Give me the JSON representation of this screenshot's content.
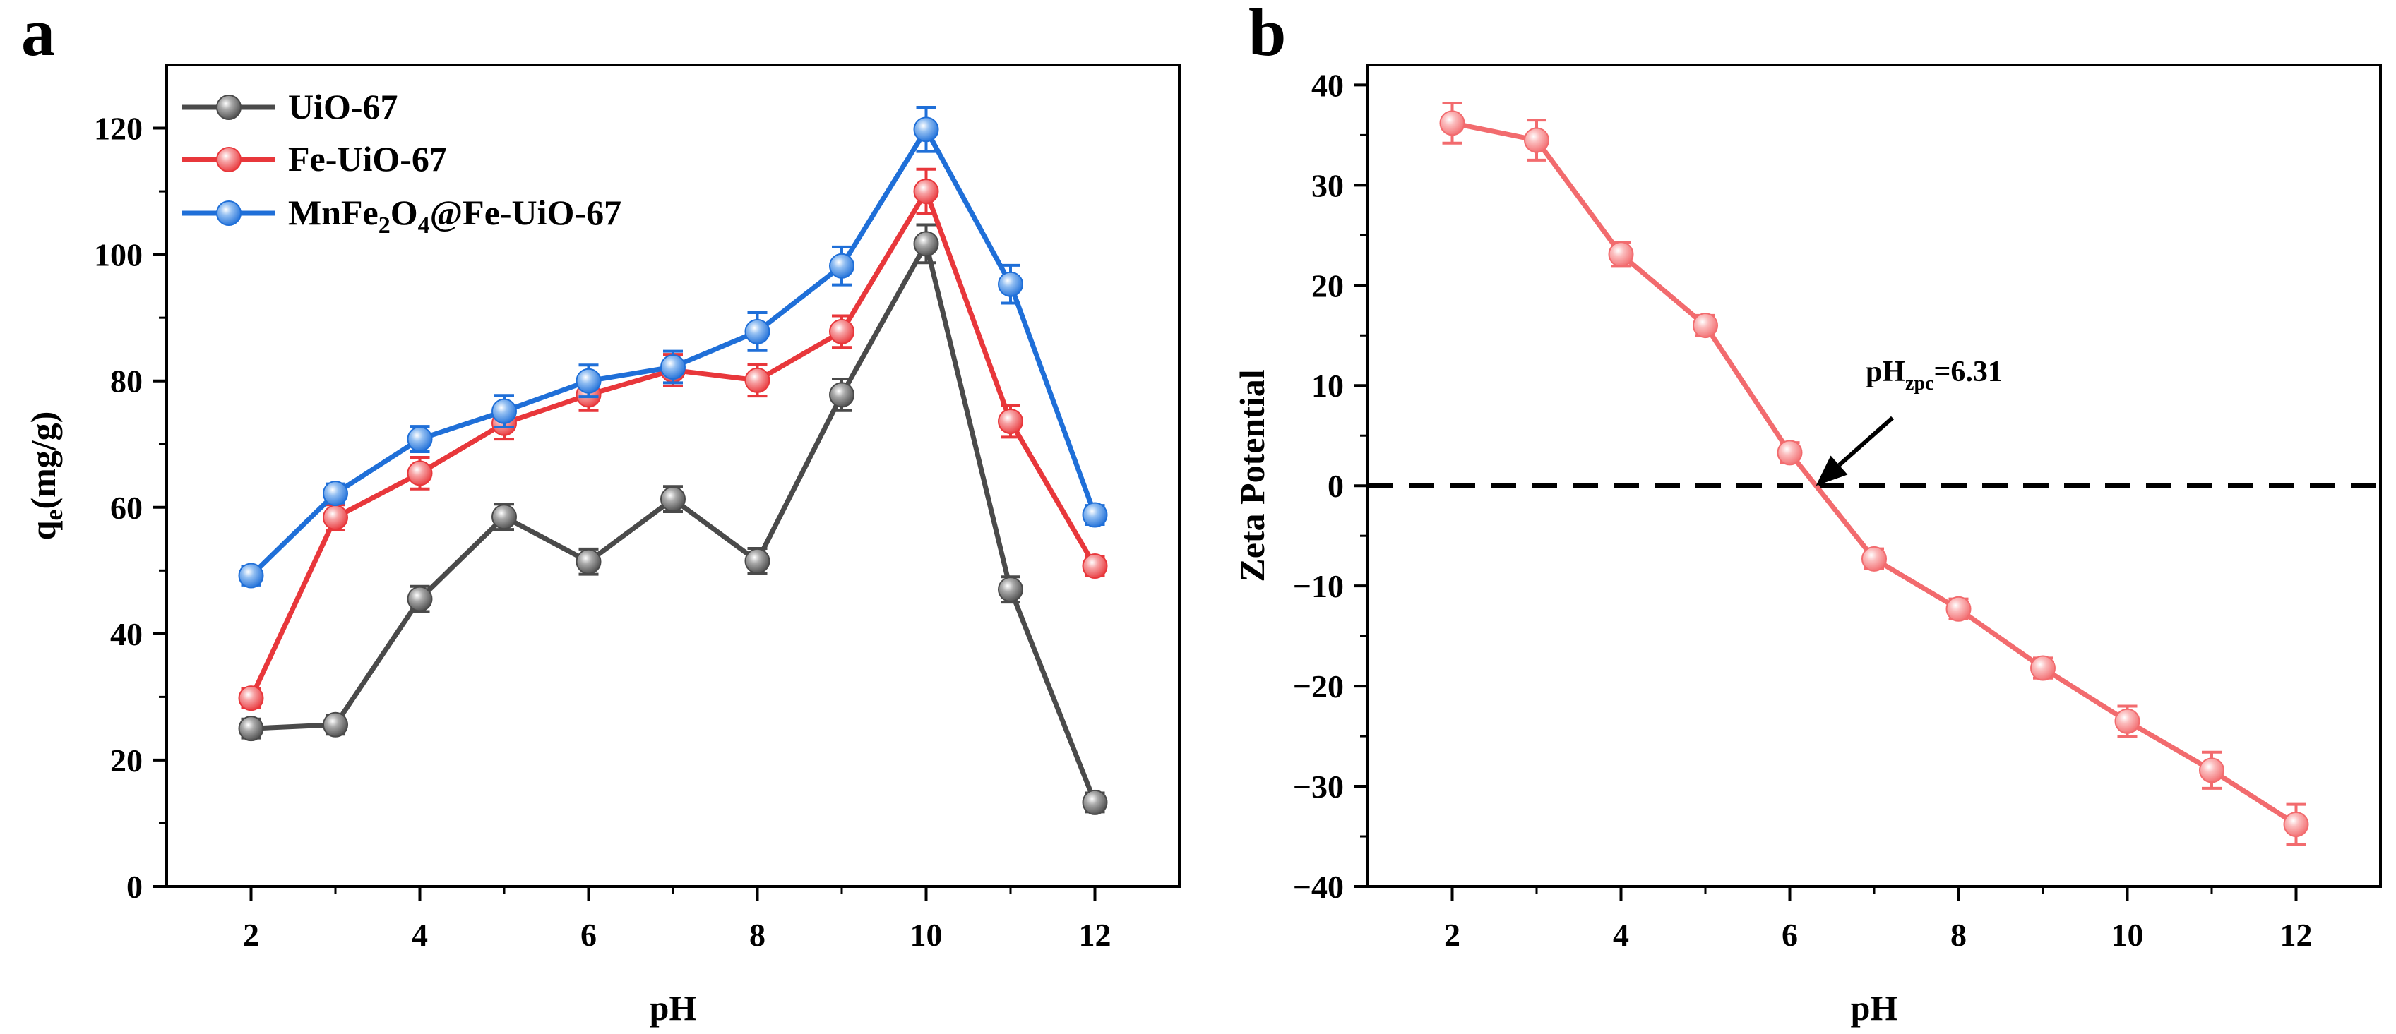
{
  "chart_data": [
    {
      "panel_label": "a",
      "type": "line",
      "title": "",
      "xlabel": "pH",
      "ylabel": "q",
      "ylabel_sub": "e",
      "ylabel_rest": "(mg/g)",
      "xlim": [
        1,
        13
      ],
      "ylim": [
        0,
        130
      ],
      "xticks": [
        2,
        4,
        6,
        8,
        10,
        12
      ],
      "yticks": [
        0,
        20,
        40,
        60,
        80,
        100,
        120
      ],
      "x": [
        2,
        3,
        4,
        5,
        6,
        7,
        8,
        9,
        10,
        11,
        12
      ],
      "legend_position": "top-left",
      "series": [
        {
          "name": "UiO-67",
          "name_parts": [
            [
              "UiO-67",
              "n"
            ]
          ],
          "color": "#4a4a4a",
          "highlight": "#aaaaaa",
          "values": [
            25,
            25.6,
            45.5,
            58.5,
            51.4,
            61.3,
            51.5,
            77.8,
            101.7,
            47,
            13.3
          ],
          "errors": [
            1.5,
            1.5,
            2,
            2,
            2,
            2,
            2,
            2.5,
            3,
            2,
            1.5
          ]
        },
        {
          "name": "Fe-UiO-67",
          "name_parts": [
            [
              "Fe-UiO-67",
              "n"
            ]
          ],
          "color": "#e8373b",
          "highlight": "#f7a3a5",
          "values": [
            29.8,
            58.4,
            65.4,
            73.3,
            77.8,
            81.7,
            80.1,
            87.8,
            110,
            73.6,
            50.7
          ],
          "errors": [
            1.5,
            2,
            2.5,
            2.5,
            2.5,
            2.5,
            2.5,
            2.5,
            3.5,
            2.5,
            1.5
          ]
        },
        {
          "name": "MnFe2O4@Fe-UiO-67",
          "name_parts": [
            [
              "MnFe",
              "n"
            ],
            [
              "2",
              "sub"
            ],
            [
              "O",
              "n"
            ],
            [
              "4",
              "sub"
            ],
            [
              "@Fe-UiO-67",
              "n"
            ]
          ],
          "color": "#1f6fd8",
          "highlight": "#93bff2",
          "values": [
            49.2,
            62.2,
            70.8,
            75.2,
            80,
            82.2,
            87.8,
            98.2,
            119.8,
            95.3,
            58.8
          ],
          "errors": [
            1.5,
            1.5,
            2,
            2.5,
            2.5,
            2.5,
            3,
            3,
            3.5,
            3,
            1.5
          ]
        }
      ]
    },
    {
      "panel_label": "b",
      "type": "line",
      "title": "",
      "xlabel": "pH",
      "ylabel": "Zeta Potential",
      "xlim": [
        1,
        13
      ],
      "ylim": [
        -40,
        42
      ],
      "xticks": [
        2,
        4,
        6,
        8,
        10,
        12
      ],
      "yticks": [
        -40,
        -30,
        -20,
        -10,
        0,
        10,
        20,
        30,
        40
      ],
      "tick_labels": [
        "−40",
        "−30",
        "−20",
        "−10",
        "0",
        "10",
        "20",
        "30",
        "40"
      ],
      "x": [
        2,
        3,
        4,
        5,
        6,
        7,
        8,
        9,
        10,
        11,
        12
      ],
      "reference_line": {
        "y": 0,
        "style": "dashed"
      },
      "annotation": {
        "parts": [
          [
            "pH",
            "n"
          ],
          [
            "zpc",
            "sub"
          ],
          [
            "=6.31",
            "n"
          ]
        ],
        "points_to_x": 6.31,
        "points_to_y": 0
      },
      "series": [
        {
          "name": "Zeta Potential",
          "color": "#f26b6e",
          "highlight": "#fbbcbd",
          "values": [
            36.2,
            34.5,
            23.1,
            16,
            3.3,
            -7.3,
            -12.3,
            -18.2,
            -23.5,
            -28.4,
            -33.8
          ],
          "errors": [
            2,
            2,
            1.2,
            1,
            1,
            1,
            1,
            1,
            1.5,
            1.8,
            2
          ]
        }
      ]
    }
  ]
}
